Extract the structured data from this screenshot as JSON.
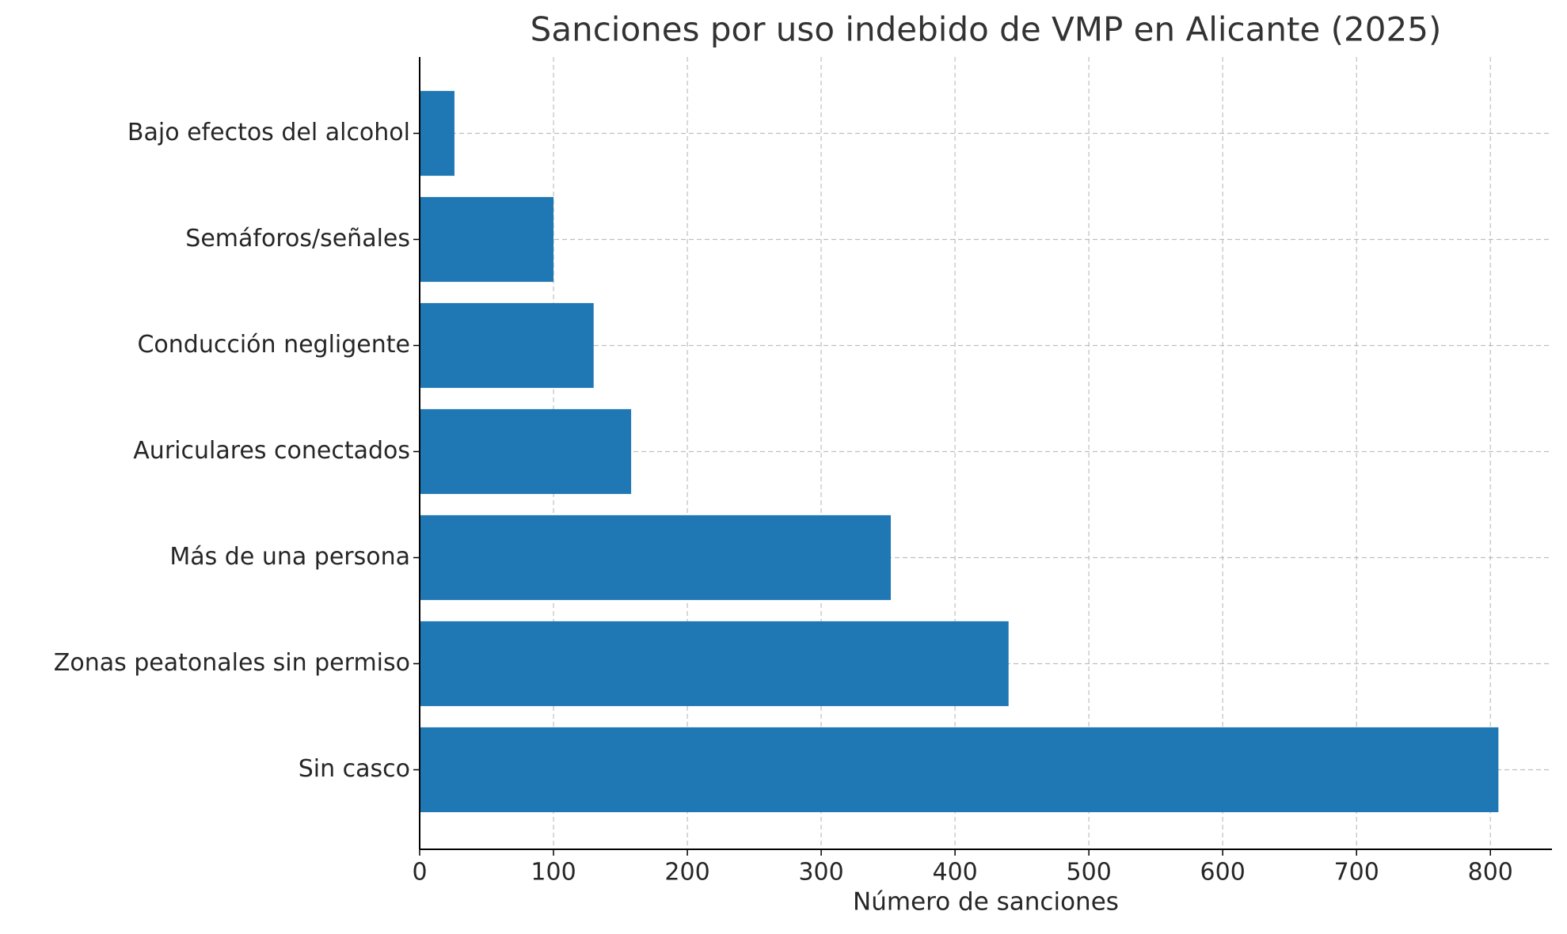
{
  "chart_data": {
    "type": "barh",
    "title": "Sanciones por uso indebido de VMP en Alicante (2025)",
    "x_label": "Número de sanciones",
    "categories": [
      "Bajo efectos del alcohol",
      "Semáforos/señales",
      "Conducción negligente",
      "Auriculares conectados",
      "Más de una persona",
      "Zonas peatonales sin permiso",
      "Sin casco"
    ],
    "values": [
      26,
      100,
      130,
      158,
      352,
      440,
      806
    ],
    "color": "#1f77b4",
    "xlim": [
      0,
      846
    ],
    "xticks": [
      0,
      100,
      200,
      300,
      400,
      500,
      600,
      700,
      800
    ],
    "grid": true
  }
}
